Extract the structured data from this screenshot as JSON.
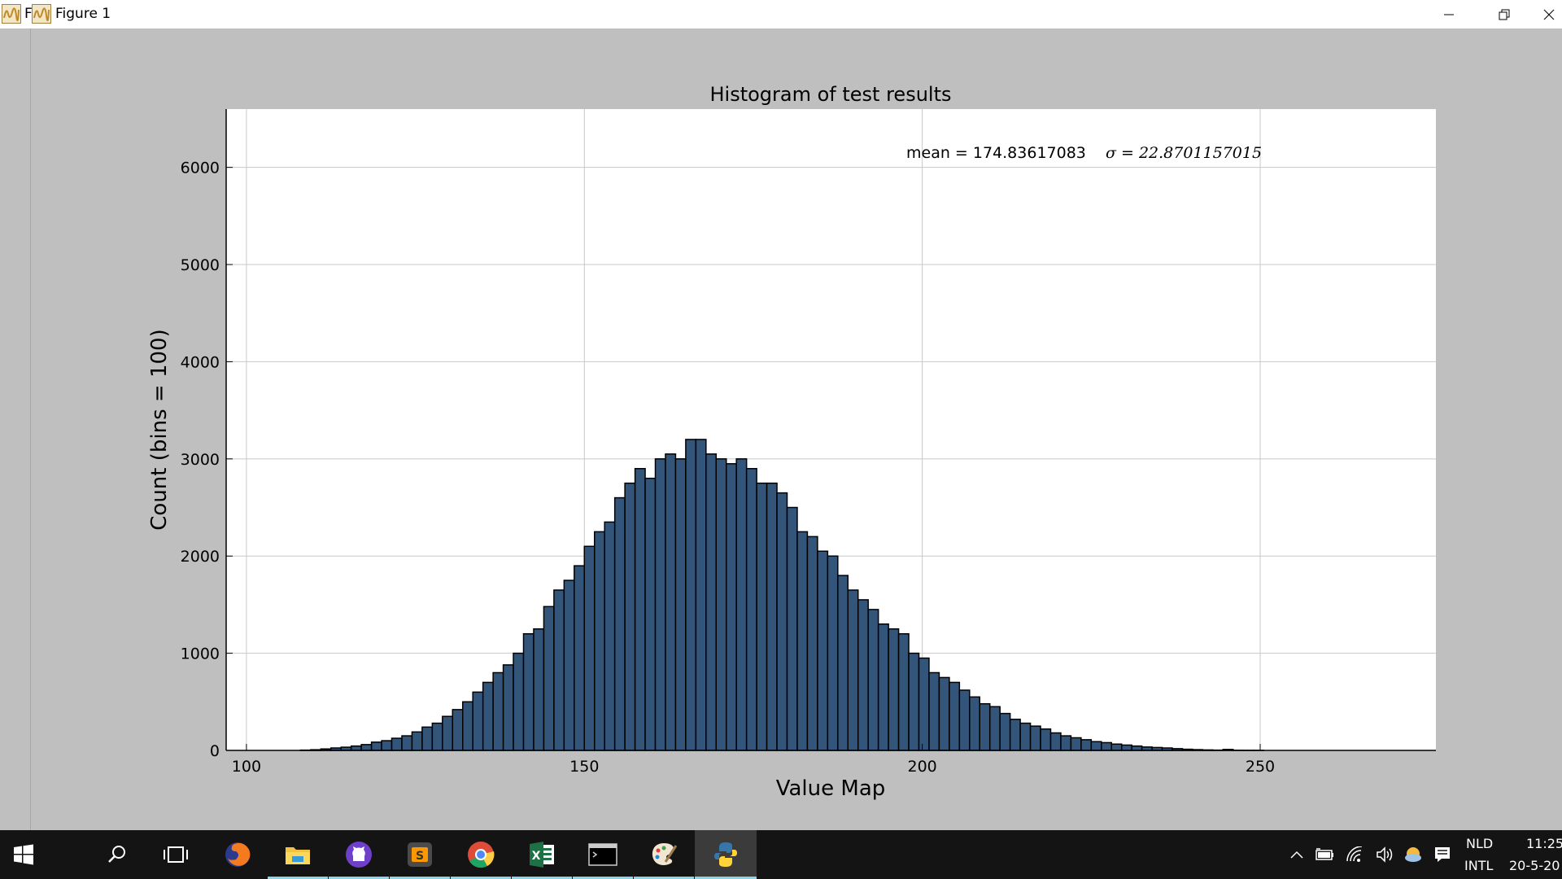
{
  "window": {
    "title_fragment": "F",
    "title": "Figure 1"
  },
  "chart_data": {
    "type": "bar",
    "title": "Histogram of test results",
    "xlabel": "Value Map",
    "ylabel": "Count (bins = 100)",
    "annotation_mean": "mean = 174.83617083",
    "annotation_sigma": "σ = 22.8701157015",
    "xlim": [
      97,
      276
    ],
    "ylim": [
      0,
      6600
    ],
    "xticks": [
      100,
      150,
      200,
      250
    ],
    "yticks": [
      0,
      1000,
      2000,
      3000,
      4000,
      5000,
      6000
    ],
    "grid": true,
    "bar_color": "#34557a",
    "bin_start": 108,
    "bin_width": 1.5,
    "values": [
      3,
      7,
      15,
      25,
      33,
      45,
      60,
      85,
      100,
      125,
      150,
      190,
      240,
      280,
      350,
      420,
      500,
      600,
      700,
      800,
      880,
      1000,
      1200,
      1250,
      1480,
      1650,
      1750,
      1900,
      2100,
      2250,
      2350,
      2600,
      2750,
      2900,
      2800,
      3000,
      3050,
      3000,
      3200,
      3200,
      3050,
      3000,
      2950,
      3000,
      2900,
      2750,
      2750,
      2650,
      2500,
      2250,
      2200,
      2050,
      2000,
      1800,
      1650,
      1550,
      1450,
      1300,
      1250,
      1200,
      1000,
      950,
      800,
      750,
      700,
      620,
      550,
      480,
      450,
      380,
      320,
      280,
      250,
      220,
      180,
      150,
      130,
      110,
      90,
      80,
      65,
      55,
      45,
      35,
      30,
      25,
      18,
      12,
      8,
      5,
      3,
      10,
      2,
      1,
      1,
      0,
      0,
      0,
      0,
      0
    ]
  },
  "taskbar": {
    "apps": [
      "start-icon",
      "search-icon",
      "task-view-icon",
      "firefox-icon",
      "file-explorer-icon",
      "github-icon",
      "sublime-icon",
      "chrome-icon",
      "excel-icon",
      "terminal-icon",
      "paint-icon",
      "python-icon"
    ],
    "lang_top": "NLD",
    "lang_bottom": "INTL",
    "time": "11:25",
    "date": "20-5-20"
  },
  "colors": {
    "plot_bg": "#ffffff",
    "figure_bg": "#bfbfbf",
    "taskbar_bg": "#141414",
    "accent": "#8fd3e8"
  }
}
